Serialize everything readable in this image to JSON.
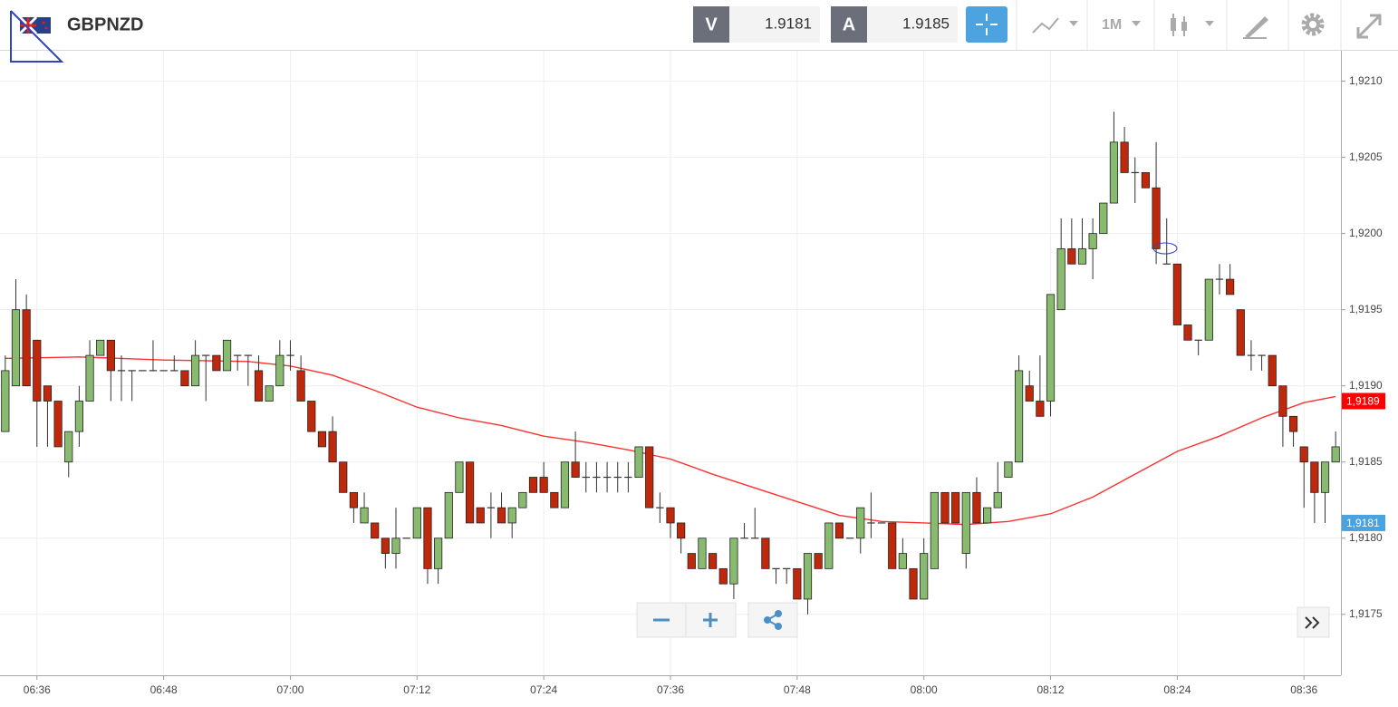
{
  "toolbar": {
    "symbol": "GBPNZD",
    "bid_label": "V",
    "bid": "1.9181",
    "ask_label": "A",
    "ask": "1.9185",
    "timeframe": "1M"
  },
  "chart_data": {
    "type": "candlestick",
    "x": [
      "06:33",
      "06:34",
      "06:35",
      "06:36",
      "06:37",
      "06:38",
      "06:39",
      "06:40",
      "06:41",
      "06:42",
      "06:43",
      "06:44",
      "06:45",
      "06:46",
      "06:47",
      "06:48",
      "06:49",
      "06:50",
      "06:51",
      "06:52",
      "06:53",
      "06:54",
      "06:55",
      "06:56",
      "06:57",
      "06:58",
      "06:59",
      "07:00",
      "07:01",
      "07:02",
      "07:03",
      "07:04",
      "07:05",
      "07:06",
      "07:07",
      "07:08",
      "07:09",
      "07:10",
      "07:11",
      "07:12",
      "07:13",
      "07:14",
      "07:15",
      "07:16",
      "07:17",
      "07:18",
      "07:19",
      "07:20",
      "07:21",
      "07:22",
      "07:23",
      "07:24",
      "07:25",
      "07:26",
      "07:27",
      "07:28",
      "07:29",
      "07:30",
      "07:31",
      "07:32",
      "07:33",
      "07:34",
      "07:35",
      "07:36",
      "07:37",
      "07:38",
      "07:39",
      "07:40",
      "07:41",
      "07:42",
      "07:43",
      "07:44",
      "07:45",
      "07:46",
      "07:47",
      "07:48",
      "07:49",
      "07:50",
      "07:51",
      "07:52",
      "07:53",
      "07:54",
      "07:55",
      "07:56",
      "07:57",
      "07:58",
      "07:59",
      "08:00",
      "08:01",
      "08:02",
      "08:03",
      "08:04",
      "08:05",
      "08:06",
      "08:07",
      "08:08",
      "08:09",
      "08:10",
      "08:11",
      "08:12",
      "08:13",
      "08:14",
      "08:15",
      "08:16",
      "08:17",
      "08:18",
      "08:19",
      "08:20",
      "08:21",
      "08:22",
      "08:23",
      "08:24",
      "08:25",
      "08:26",
      "08:27",
      "08:28",
      "08:29",
      "08:30",
      "08:31",
      "08:32",
      "08:33",
      "08:34",
      "08:35",
      "08:36",
      "08:37",
      "08:38",
      "08:39"
    ],
    "ohlc": {
      "up_color": "#88bb70",
      "down_color": "#c0280c",
      "open": [
        1.9187,
        1.919,
        1.9195,
        1.9193,
        1.919,
        1.9189,
        1.9185,
        1.9187,
        1.9189,
        1.9192,
        1.9193,
        1.9191,
        1.9191,
        1.9191,
        1.9191,
        1.9191,
        1.9191,
        1.9191,
        1.919,
        1.9192,
        1.9192,
        1.9191,
        1.9192,
        1.9192,
        1.9191,
        1.9189,
        1.919,
        1.9192,
        1.9191,
        1.9189,
        1.9187,
        1.9187,
        1.9185,
        1.9183,
        1.9181,
        1.9181,
        1.918,
        1.9179,
        1.918,
        1.918,
        1.9182,
        1.9178,
        1.918,
        1.9183,
        1.9185,
        1.9182,
        1.9182,
        1.9182,
        1.9181,
        1.9182,
        1.9184,
        1.9184,
        1.9183,
        1.9182,
        1.9185,
        1.9184,
        1.9184,
        1.9184,
        1.9184,
        1.9184,
        1.9184,
        1.9186,
        1.9182,
        1.9182,
        1.9181,
        1.9179,
        1.9178,
        1.9179,
        1.9178,
        1.9177,
        1.918,
        1.918,
        1.918,
        1.9178,
        1.9178,
        1.9178,
        1.9176,
        1.9179,
        1.9178,
        1.9181,
        1.918,
        1.918,
        1.9181,
        1.9181,
        1.9181,
        1.9178,
        1.9178,
        1.9176,
        1.9178,
        1.9183,
        1.9183,
        1.9179,
        1.9183,
        1.9181,
        1.9182,
        1.9184,
        1.9185,
        1.919,
        1.9189,
        1.9189,
        1.9195,
        1.9199,
        1.9198,
        1.9199,
        1.92,
        1.9202,
        1.9206,
        1.9204,
        1.9204,
        1.9203,
        1.9198,
        1.9198,
        1.9194,
        1.9193,
        1.9193,
        1.9197,
        1.9197,
        1.9195,
        1.9192,
        1.9192,
        1.9192,
        1.919,
        1.9188,
        1.9186,
        1.9185,
        1.9183,
        1.9185
      ],
      "high": [
        1.9192,
        1.9197,
        1.9196,
        1.9193,
        1.919,
        1.9189,
        1.9187,
        1.919,
        1.9193,
        1.9193,
        1.9193,
        1.9192,
        1.9191,
        1.9191,
        1.9193,
        1.9191,
        1.9192,
        1.9191,
        1.9193,
        1.9192,
        1.9192,
        1.9193,
        1.9192,
        1.9192,
        1.9192,
        1.919,
        1.9193,
        1.9193,
        1.9192,
        1.9189,
        1.9187,
        1.9188,
        1.9185,
        1.9183,
        1.9183,
        1.9181,
        1.918,
        1.9182,
        1.918,
        1.9182,
        1.9182,
        1.918,
        1.9183,
        1.9185,
        1.9185,
        1.9182,
        1.9183,
        1.9183,
        1.9182,
        1.9183,
        1.9184,
        1.9185,
        1.9183,
        1.9185,
        1.9187,
        1.9185,
        1.9185,
        1.9185,
        1.9185,
        1.9185,
        1.9186,
        1.9186,
        1.9183,
        1.9182,
        1.9181,
        1.9179,
        1.918,
        1.9179,
        1.9178,
        1.918,
        1.9181,
        1.9182,
        1.918,
        1.9178,
        1.9178,
        1.9178,
        1.9179,
        1.9179,
        1.9181,
        1.9181,
        1.918,
        1.9182,
        1.9183,
        1.9181,
        1.9181,
        1.918,
        1.9178,
        1.918,
        1.9183,
        1.9183,
        1.9183,
        1.9183,
        1.9184,
        1.9182,
        1.9185,
        1.9185,
        1.9192,
        1.9191,
        1.9192,
        1.9196,
        1.9201,
        1.9201,
        1.9201,
        1.9201,
        1.9202,
        1.9208,
        1.9207,
        1.9205,
        1.9204,
        1.9206,
        1.9201,
        1.9198,
        1.9194,
        1.9193,
        1.9197,
        1.9198,
        1.9198,
        1.9195,
        1.9193,
        1.9192,
        1.9192,
        1.919,
        1.9188,
        1.9186,
        1.9185,
        1.9185,
        1.9187
      ],
      "low": [
        1.9187,
        1.919,
        1.919,
        1.9186,
        1.9186,
        1.9186,
        1.9184,
        1.9186,
        1.9189,
        1.9192,
        1.9189,
        1.9189,
        1.9189,
        1.9191,
        1.9191,
        1.9191,
        1.9191,
        1.919,
        1.919,
        1.9189,
        1.9191,
        1.9191,
        1.9191,
        1.919,
        1.9189,
        1.9189,
        1.919,
        1.9191,
        1.9189,
        1.9187,
        1.9186,
        1.9185,
        1.9183,
        1.9181,
        1.9181,
        1.918,
        1.9178,
        1.9178,
        1.918,
        1.918,
        1.9177,
        1.9177,
        1.918,
        1.9183,
        1.9181,
        1.9181,
        1.918,
        1.9181,
        1.918,
        1.9182,
        1.9183,
        1.9183,
        1.9182,
        1.9182,
        1.9184,
        1.9183,
        1.9183,
        1.9183,
        1.9183,
        1.9183,
        1.9184,
        1.9182,
        1.9181,
        1.918,
        1.9179,
        1.9178,
        1.9178,
        1.9178,
        1.9177,
        1.9176,
        1.918,
        1.918,
        1.9178,
        1.9177,
        1.9177,
        1.9176,
        1.9175,
        1.9178,
        1.9178,
        1.918,
        1.918,
        1.9179,
        1.918,
        1.9181,
        1.9178,
        1.9178,
        1.9176,
        1.9176,
        1.9178,
        1.9181,
        1.9181,
        1.9178,
        1.9181,
        1.9181,
        1.9182,
        1.9184,
        1.9185,
        1.9189,
        1.9188,
        1.9188,
        1.9195,
        1.9198,
        1.9198,
        1.9197,
        1.92,
        1.9202,
        1.9204,
        1.9202,
        1.9203,
        1.9198,
        1.9198,
        1.9194,
        1.9193,
        1.9192,
        1.9193,
        1.9196,
        1.9196,
        1.9192,
        1.9191,
        1.9191,
        1.919,
        1.9186,
        1.9186,
        1.9182,
        1.9181,
        1.9181,
        1.9185
      ],
      "close": [
        1.9191,
        1.9195,
        1.919,
        1.9189,
        1.9189,
        1.9186,
        1.9187,
        1.9189,
        1.9192,
        1.9193,
        1.9191,
        1.9191,
        1.9191,
        1.9191,
        1.9191,
        1.9191,
        1.9191,
        1.919,
        1.9192,
        1.9192,
        1.9191,
        1.9193,
        1.9192,
        1.9192,
        1.9189,
        1.919,
        1.9192,
        1.9192,
        1.9189,
        1.9187,
        1.9186,
        1.9185,
        1.9183,
        1.9182,
        1.9182,
        1.918,
        1.9179,
        1.918,
        1.918,
        1.9182,
        1.9178,
        1.918,
        1.9183,
        1.9185,
        1.9181,
        1.9181,
        1.9182,
        1.9181,
        1.9182,
        1.9183,
        1.9183,
        1.9183,
        1.9182,
        1.9185,
        1.9184,
        1.9184,
        1.9184,
        1.9184,
        1.9184,
        1.9184,
        1.9186,
        1.9182,
        1.9182,
        1.9181,
        1.918,
        1.9178,
        1.918,
        1.9178,
        1.9177,
        1.918,
        1.918,
        1.918,
        1.9178,
        1.9178,
        1.9178,
        1.9176,
        1.9179,
        1.9178,
        1.9181,
        1.918,
        1.918,
        1.9182,
        1.9181,
        1.9181,
        1.9178,
        1.9179,
        1.9176,
        1.9179,
        1.9183,
        1.9181,
        1.9181,
        1.9183,
        1.9181,
        1.9182,
        1.9183,
        1.9185,
        1.9191,
        1.9189,
        1.9188,
        1.9196,
        1.9199,
        1.9198,
        1.9199,
        1.92,
        1.9202,
        1.9206,
        1.9204,
        1.9204,
        1.9203,
        1.9199,
        1.9198,
        1.9194,
        1.9193,
        1.9193,
        1.9197,
        1.9197,
        1.9196,
        1.9192,
        1.9192,
        1.9192,
        1.919,
        1.9188,
        1.9187,
        1.9185,
        1.9183,
        1.9185,
        1.9186
      ]
    },
    "lines": [
      {
        "color": "#ff3030",
        "x": [
          "06:33",
          "06:40",
          "06:48",
          "06:56",
          "07:00",
          "07:04",
          "07:08",
          "07:12",
          "07:16",
          "07:20",
          "07:24",
          "07:28",
          "07:32",
          "07:36",
          "07:40",
          "07:44",
          "07:48",
          "07:52",
          "07:56",
          "08:00",
          "08:04",
          "08:08",
          "08:12",
          "08:16",
          "08:20",
          "08:24",
          "08:28",
          "08:32",
          "08:36",
          "08:39"
        ],
        "values": [
          1.91918,
          1.91919,
          1.91917,
          1.91916,
          1.91913,
          1.91907,
          1.91897,
          1.91886,
          1.91879,
          1.91874,
          1.91867,
          1.91863,
          1.91858,
          1.91852,
          1.91842,
          1.91833,
          1.91824,
          1.91815,
          1.91811,
          1.9181,
          1.91809,
          1.91811,
          1.91816,
          1.91827,
          1.91842,
          1.91857,
          1.91867,
          1.91879,
          1.91889,
          1.91893
        ]
      }
    ],
    "ylim": [
      1.9171,
      1.9212
    ],
    "yticks": [
      {
        "value": 1.9175,
        "label": "1,9175"
      },
      {
        "value": 1.918,
        "label": "1,9180"
      },
      {
        "value": 1.9185,
        "label": "1,9185"
      },
      {
        "value": 1.919,
        "label": "1,9190"
      },
      {
        "value": 1.9195,
        "label": "1,9195"
      },
      {
        "value": 1.92,
        "label": "1,9200"
      },
      {
        "value": 1.9205,
        "label": "1,9205"
      },
      {
        "value": 1.921,
        "label": "1,9210"
      }
    ],
    "xticks": [
      "06:36",
      "06:48",
      "07:00",
      "07:12",
      "07:24",
      "07:36",
      "07:48",
      "08:00",
      "08:12",
      "08:24",
      "08:36"
    ],
    "grid": true,
    "price_tags": [
      {
        "value": 1.9189,
        "label": "1,9189",
        "color": "#ff0000"
      },
      {
        "value": 1.9181,
        "label": "1,9181",
        "color": "#4aa3df"
      }
    ]
  }
}
